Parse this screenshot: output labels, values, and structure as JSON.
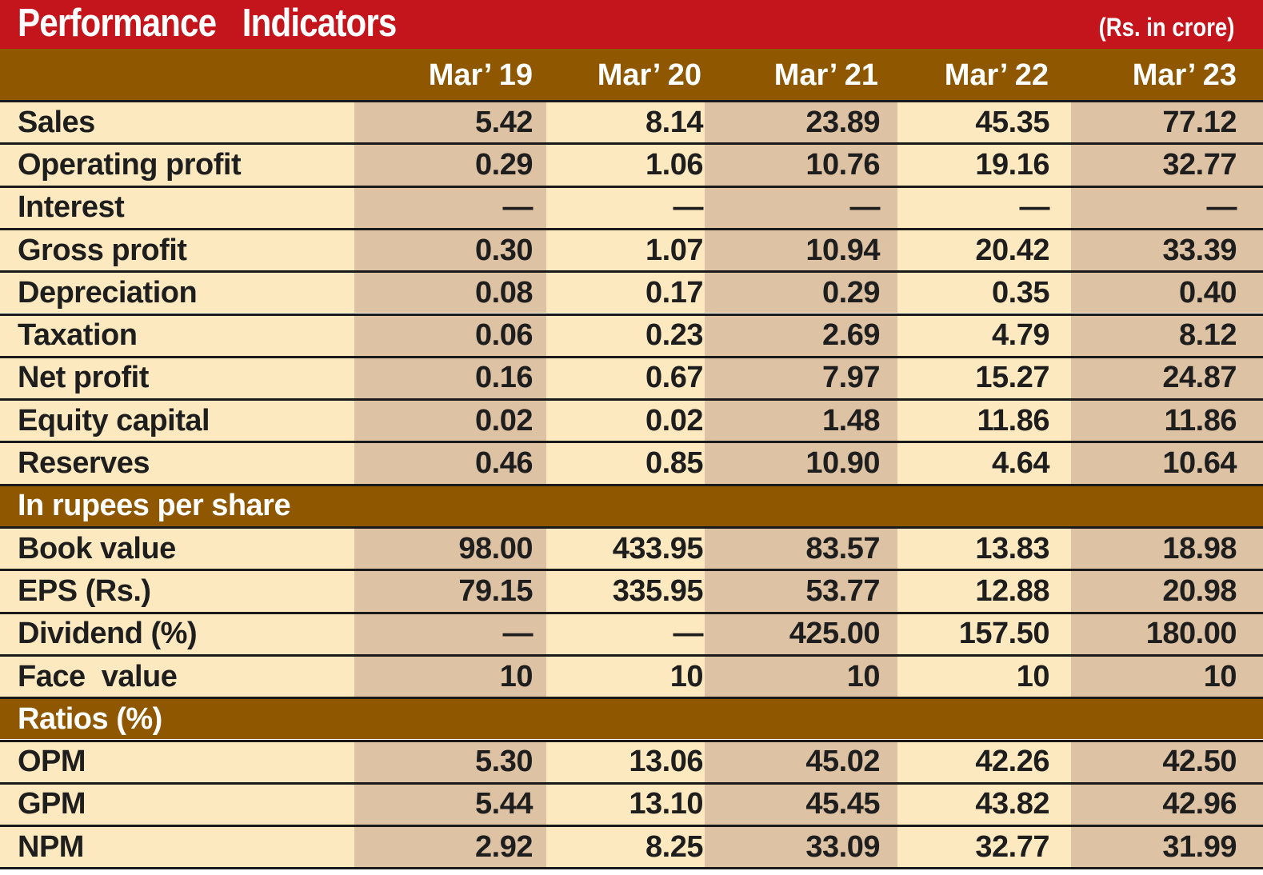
{
  "title": "Performance   Indicators",
  "unit": "(Rs. in crore)",
  "columns": [
    "Mar’ 19",
    "Mar’ 20",
    "Mar’ 21",
    "Mar’ 22",
    "Mar’ 23"
  ],
  "rows": [
    {
      "type": "data",
      "label": "Sales",
      "values": [
        "5.42",
        "8.14",
        "23.89",
        "45.35",
        "77.12"
      ]
    },
    {
      "type": "data",
      "label": "Operating profit",
      "values": [
        "0.29",
        "1.06",
        "10.76",
        "19.16",
        "32.77"
      ]
    },
    {
      "type": "data",
      "label": "Interest",
      "values": [
        "—",
        "—",
        "—",
        "—",
        "—"
      ]
    },
    {
      "type": "data",
      "label": "Gross profit",
      "values": [
        "0.30",
        "1.07",
        "10.94",
        "20.42",
        "33.39"
      ]
    },
    {
      "type": "data",
      "label": "Depreciation",
      "values": [
        "0.08",
        "0.17",
        "0.29",
        "0.35",
        "0.40"
      ]
    },
    {
      "type": "data",
      "label": "Taxation",
      "values": [
        "0.06",
        "0.23",
        "2.69",
        "4.79",
        "8.12"
      ]
    },
    {
      "type": "data",
      "label": "Net profit",
      "values": [
        "0.16",
        "0.67",
        "7.97",
        "15.27",
        "24.87"
      ]
    },
    {
      "type": "data",
      "label": "Equity capital",
      "values": [
        "0.02",
        "0.02",
        "1.48",
        "11.86",
        "11.86"
      ]
    },
    {
      "type": "data",
      "label": "Reserves",
      "values": [
        "0.46",
        "0.85",
        "10.90",
        "4.64",
        "10.64"
      ]
    },
    {
      "type": "section",
      "label": "In rupees per share"
    },
    {
      "type": "data",
      "label": "Book value",
      "values": [
        "98.00",
        "433.95",
        "83.57",
        "13.83",
        "18.98"
      ]
    },
    {
      "type": "data",
      "label": "EPS (Rs.)",
      "values": [
        "79.15",
        "335.95",
        "53.77",
        "12.88",
        "20.98"
      ]
    },
    {
      "type": "data",
      "label": "Dividend (%)",
      "values": [
        "—",
        "—",
        "425.00",
        "157.50",
        "180.00"
      ]
    },
    {
      "type": "data",
      "label": "Face  value",
      "values": [
        "10",
        "10",
        "10",
        "10",
        "10"
      ]
    },
    {
      "type": "section",
      "label": "Ratios (%)"
    },
    {
      "type": "data",
      "label": "OPM",
      "values": [
        "5.30",
        "13.06",
        "45.02",
        "42.26",
        "42.50"
      ]
    },
    {
      "type": "data",
      "label": "GPM",
      "values": [
        "5.44",
        "13.10",
        "45.45",
        "43.82",
        "42.96"
      ]
    },
    {
      "type": "data",
      "label": "NPM",
      "values": [
        "2.92",
        "8.25",
        "33.09",
        "32.77",
        "31.99"
      ]
    }
  ],
  "colors": {
    "title_bg": "#c4141c",
    "header_bg": "#8f5800",
    "cell_light": "#fde9bf",
    "cell_dark": "#ddc2a3",
    "text": "#1e1e1e"
  }
}
